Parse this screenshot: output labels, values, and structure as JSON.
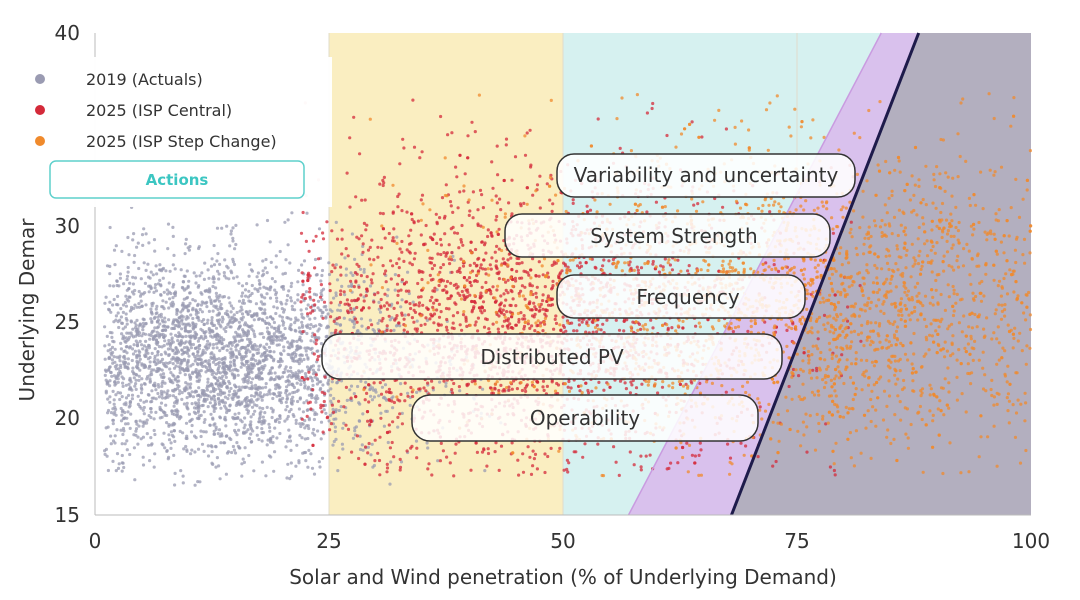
{
  "chart_data": {
    "type": "scatter",
    "xlabel": "Solar and Wind penetration (% of Underlying Demand)",
    "ylabel": "Underlying Demar",
    "xlim": [
      0,
      100
    ],
    "ylim": [
      15,
      40
    ],
    "x_ticks": [
      "0",
      "25",
      "50",
      "75",
      "100"
    ],
    "y_ticks": [
      "15",
      "20",
      "25",
      "30",
      "40"
    ],
    "grid": false,
    "legend_position": "top-left",
    "series": [
      {
        "name": "2019 (Actuals)",
        "color": "#9a9bb2",
        "x_range": [
          1,
          45
        ],
        "y_range": [
          16.5,
          31
        ],
        "center": [
          12,
          23
        ],
        "approx_points": 3000
      },
      {
        "name": "2025 (ISP Central)",
        "color": "#d42a3a",
        "x_range": [
          22,
          82
        ],
        "y_range": [
          17,
          38
        ],
        "center": [
          45,
          25
        ],
        "approx_points": 2500
      },
      {
        "name": "2025 (ISP Step Change)",
        "color": "#f08a2c",
        "x_range": [
          25,
          100
        ],
        "y_range": [
          17,
          38
        ],
        "center": [
          78,
          26
        ],
        "approx_points": 2500
      }
    ],
    "regions": [
      {
        "x_range": [
          25,
          50
        ],
        "color": "#faeec1"
      },
      {
        "x_range": [
          50,
          100
        ],
        "color": "#d6f1f0"
      }
    ],
    "boundary_lines": [
      {
        "from": [
          57,
          15
        ],
        "to": [
          84,
          40
        ],
        "color": "#d9b8ec"
      },
      {
        "from": [
          68,
          15
        ],
        "to": [
          88,
          40
        ],
        "color": "#1e1b4b"
      }
    ],
    "shaded_region_color": "#b3afbf",
    "annotations": [
      "Variability and uncertainty",
      "System Strength",
      "Frequency",
      "Distributed PV",
      "Operability"
    ]
  },
  "legend": {
    "items": [
      {
        "label": "2019 (Actuals)",
        "color": "#9a9bb2"
      },
      {
        "label": "2025 (ISP Central)",
        "color": "#d42a3a"
      },
      {
        "label": "2025 (ISP Step Change)",
        "color": "#f08a2c"
      }
    ],
    "actions_label": "Actions"
  }
}
